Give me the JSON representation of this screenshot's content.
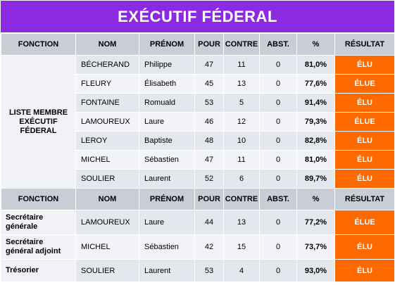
{
  "title": "EXÉCUTIF FÉDERAL",
  "headers": [
    "FONCTION",
    "NOM",
    "PRÉNOM",
    "POUR",
    "CONTRE",
    "ABST.",
    "%",
    "RÉSULTAT"
  ],
  "group_label": "LISTE MEMBRE EXÉCUTIF FÉDERAL",
  "members": [
    {
      "nom": "BÉCHERAND",
      "prenom": "Philippe",
      "pour": "47",
      "contre": "11",
      "abst": "0",
      "pct": "81,0%",
      "resultat": "ÉLU"
    },
    {
      "nom": "FLEURY",
      "prenom": "Élisabeth",
      "pour": "45",
      "contre": "13",
      "abst": "0",
      "pct": "77,6%",
      "resultat": "ÉLUE"
    },
    {
      "nom": "FONTAINE",
      "prenom": "Romuald",
      "pour": "53",
      "contre": "5",
      "abst": "0",
      "pct": "91,4%",
      "resultat": "ÉLU"
    },
    {
      "nom": "LAMOUREUX",
      "prenom": "Laure",
      "pour": "46",
      "contre": "12",
      "abst": "0",
      "pct": "79,3%",
      "resultat": "ÉLUE"
    },
    {
      "nom": "LEROY",
      "prenom": "Baptiste",
      "pour": "48",
      "contre": "10",
      "abst": "0",
      "pct": "82,8%",
      "resultat": "ÉLU"
    },
    {
      "nom": "MICHEL",
      "prenom": "Sébastien",
      "pour": "47",
      "contre": "11",
      "abst": "0",
      "pct": "81,0%",
      "resultat": "ÉLU"
    },
    {
      "nom": "SOULIER",
      "prenom": "Laurent",
      "pour": "52",
      "contre": "6",
      "abst": "0",
      "pct": "89,7%",
      "resultat": "ÉLU"
    }
  ],
  "officers": [
    {
      "fonction": "Secrétaire générale",
      "nom": "LAMOUREUX",
      "prenom": "Laure",
      "pour": "44",
      "contre": "13",
      "abst": "0",
      "pct": "77,2%",
      "resultat": "ÉLUE"
    },
    {
      "fonction": "Secrétaire général adjoint",
      "nom": "MICHEL",
      "prenom": "Sébastien",
      "pour": "42",
      "contre": "15",
      "abst": "0",
      "pct": "73,7%",
      "resultat": "ÉLU"
    },
    {
      "fonction": "Trésorier",
      "nom": "SOULIER",
      "prenom": "Laurent",
      "pour": "53",
      "contre": "4",
      "abst": "0",
      "pct": "93,0%",
      "resultat": "ÉLU"
    }
  ],
  "colors": {
    "title_bg": "#8a2be2",
    "header_bg": "#c9cdd6",
    "result_bg": "#ff6a00"
  }
}
